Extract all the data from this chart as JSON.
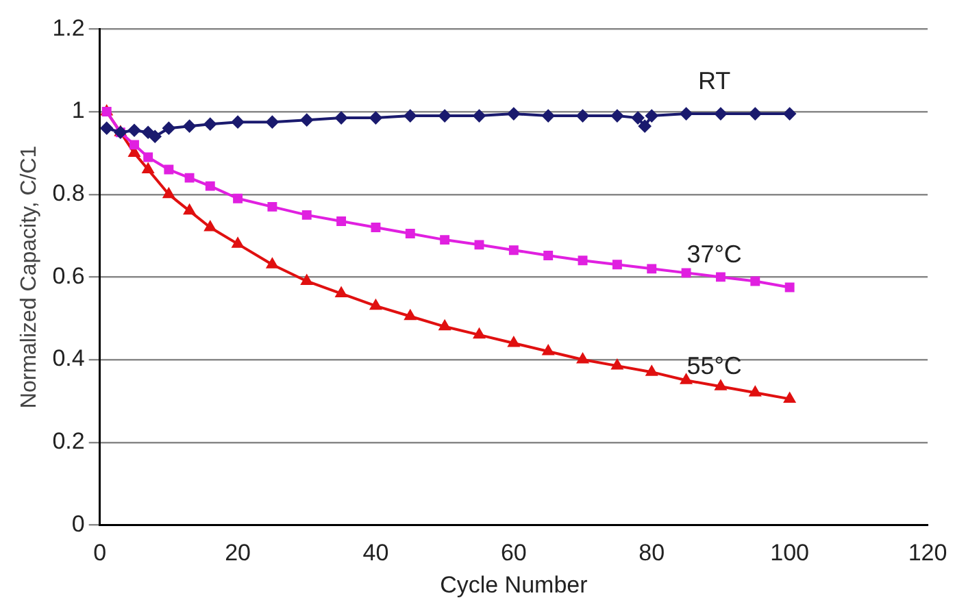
{
  "chart_data": {
    "type": "line",
    "xlabel": "Cycle Number",
    "ylabel": "Normalized Capacity, C/C1",
    "xlim": [
      0,
      120
    ],
    "xticks": [
      0,
      20,
      40,
      60,
      80,
      100,
      120
    ],
    "ylim": [
      0,
      1.2
    ],
    "yticks": [
      0,
      0.2,
      0.4,
      0.6,
      0.8,
      1,
      1.2
    ],
    "grid": "y",
    "legend": false,
    "line_style": "solid",
    "series": [
      {
        "name": "RT",
        "color": "#1a1a6e",
        "marker": "diamond",
        "x": [
          1,
          3,
          5,
          7,
          8,
          10,
          13,
          16,
          20,
          25,
          30,
          35,
          40,
          45,
          50,
          55,
          60,
          65,
          70,
          75,
          78,
          79,
          80,
          85,
          90,
          95,
          100
        ],
        "values": [
          0.96,
          0.95,
          0.955,
          0.95,
          0.94,
          0.96,
          0.965,
          0.97,
          0.975,
          0.975,
          0.98,
          0.985,
          0.985,
          0.99,
          0.99,
          0.99,
          0.995,
          0.99,
          0.99,
          0.99,
          0.985,
          0.965,
          0.99,
          0.995,
          0.995,
          0.995,
          0.995
        ]
      },
      {
        "name": "37°C",
        "color": "#e020e0",
        "marker": "square",
        "x": [
          1,
          3,
          5,
          7,
          10,
          13,
          16,
          20,
          25,
          30,
          35,
          40,
          45,
          50,
          55,
          60,
          65,
          70,
          75,
          80,
          85,
          90,
          95,
          100
        ],
        "values": [
          1.0,
          0.95,
          0.92,
          0.89,
          0.86,
          0.84,
          0.82,
          0.79,
          0.77,
          0.75,
          0.735,
          0.72,
          0.705,
          0.69,
          0.678,
          0.665,
          0.652,
          0.64,
          0.63,
          0.62,
          0.61,
          0.6,
          0.59,
          0.575
        ]
      },
      {
        "name": "55°C",
        "color": "#e01010",
        "marker": "triangle",
        "x": [
          1,
          3,
          5,
          7,
          10,
          13,
          16,
          20,
          25,
          30,
          35,
          40,
          45,
          50,
          55,
          60,
          65,
          70,
          75,
          80,
          85,
          90,
          95,
          100
        ],
        "values": [
          1.0,
          0.95,
          0.9,
          0.86,
          0.8,
          0.76,
          0.72,
          0.68,
          0.63,
          0.59,
          0.56,
          0.53,
          0.505,
          0.48,
          0.46,
          0.44,
          0.42,
          0.4,
          0.385,
          0.37,
          0.35,
          0.335,
          0.32,
          0.305
        ]
      }
    ]
  }
}
